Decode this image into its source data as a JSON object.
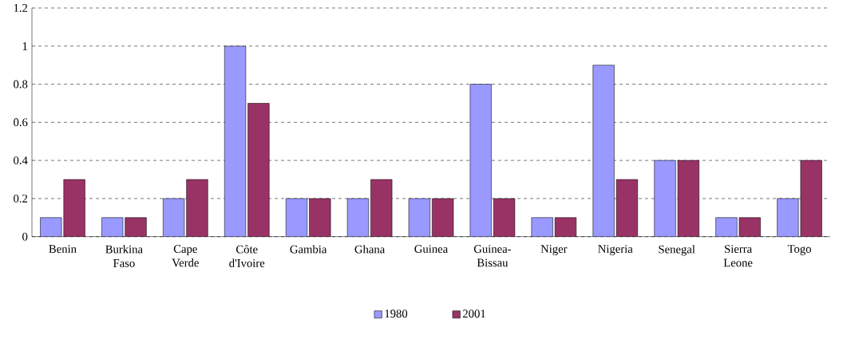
{
  "chart_data": {
    "type": "bar",
    "categories": [
      "Benin",
      "Burkina Faso",
      "Cape Verde",
      "Côte d'Ivoire",
      "Gambia",
      "Ghana",
      "Guinea",
      "Guinea-Bissau",
      "Niger",
      "Nigeria",
      "Senegal",
      "Sierra Leone",
      "Togo"
    ],
    "series": [
      {
        "name": "1980",
        "color": "#9999ff",
        "values": [
          0.1,
          0.1,
          0.2,
          1.0,
          0.2,
          0.2,
          0.2,
          0.8,
          0.1,
          0.9,
          0.4,
          0.1,
          0.2
        ]
      },
      {
        "name": "2001",
        "color": "#993366",
        "values": [
          0.3,
          0.1,
          0.3,
          0.7,
          0.2,
          0.3,
          0.2,
          0.2,
          0.1,
          0.3,
          0.4,
          0.1,
          0.4
        ]
      }
    ],
    "ylim": [
      0,
      1.2
    ],
    "yticks": [
      0,
      0.2,
      0.4,
      0.6,
      0.8,
      1,
      1.2
    ],
    "grid": "y",
    "legend": "bottom"
  }
}
